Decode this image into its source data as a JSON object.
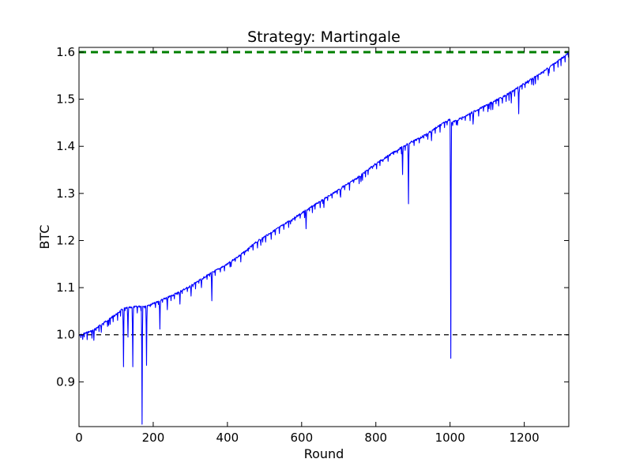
{
  "chart_data": {
    "type": "line",
    "title": "Strategy: Martingale",
    "xlabel": "Round",
    "ylabel": "BTC",
    "xlim": [
      0,
      1320
    ],
    "ylim": [
      0.805,
      1.61
    ],
    "x_ticks": [
      0,
      200,
      400,
      600,
      800,
      1000,
      1200
    ],
    "x_tick_labels": [
      "0",
      "200",
      "400",
      "600",
      "800",
      "1000",
      "1200"
    ],
    "y_ticks": [
      0.9,
      1.0,
      1.1,
      1.2,
      1.3,
      1.4,
      1.5,
      1.6
    ],
    "y_tick_labels": [
      "0.9",
      "1.0",
      "1.1",
      "1.2",
      "1.3",
      "1.4",
      "1.5",
      "1.6"
    ],
    "grid": false,
    "reference_lines": [
      {
        "y": 1.6,
        "color": "#007f00",
        "style": "dashed",
        "width": "thick"
      },
      {
        "y": 1.0,
        "color": "#000000",
        "style": "dashed",
        "width": "thin"
      }
    ],
    "series": [
      {
        "color": "#0000ff",
        "trend": [
          [
            0,
            1.0
          ],
          [
            40,
            1.012
          ],
          [
            80,
            1.035
          ],
          [
            100,
            1.045
          ],
          [
            120,
            1.058
          ],
          [
            160,
            1.062
          ],
          [
            180,
            1.063
          ],
          [
            200,
            1.068
          ],
          [
            250,
            1.085
          ],
          [
            300,
            1.105
          ],
          [
            350,
            1.13
          ],
          [
            400,
            1.152
          ],
          [
            450,
            1.18
          ],
          [
            480,
            1.2
          ],
          [
            550,
            1.235
          ],
          [
            600,
            1.26
          ],
          [
            650,
            1.285
          ],
          [
            700,
            1.31
          ],
          [
            750,
            1.335
          ],
          [
            800,
            1.365
          ],
          [
            850,
            1.39
          ],
          [
            880,
            1.405
          ],
          [
            920,
            1.42
          ],
          [
            1000,
            1.46
          ],
          [
            1005,
            1.452
          ],
          [
            1050,
            1.47
          ],
          [
            1100,
            1.49
          ],
          [
            1150,
            1.51
          ],
          [
            1200,
            1.535
          ],
          [
            1250,
            1.56
          ],
          [
            1320,
            1.6
          ]
        ],
        "drawdowns": [
          [
            10,
            0.99
          ],
          [
            40,
            0.988
          ],
          [
            60,
            1.005
          ],
          [
            80,
            1.02
          ],
          [
            120,
            0.932
          ],
          [
            132,
            0.995
          ],
          [
            145,
            0.932
          ],
          [
            170,
            0.81
          ],
          [
            182,
            0.935
          ],
          [
            218,
            1.012
          ],
          [
            238,
            1.053
          ],
          [
            272,
            1.065
          ],
          [
            302,
            1.082
          ],
          [
            330,
            1.1
          ],
          [
            358,
            1.072
          ],
          [
            410,
            1.145
          ],
          [
            490,
            1.19
          ],
          [
            570,
            1.235
          ],
          [
            612,
            1.225
          ],
          [
            660,
            1.27
          ],
          [
            705,
            1.292
          ],
          [
            760,
            1.325
          ],
          [
            872,
            1.34
          ],
          [
            888,
            1.278
          ],
          [
            940,
            1.415
          ],
          [
            950,
            1.412
          ],
          [
            1002,
            0.95
          ],
          [
            1020,
            1.445
          ],
          [
            1062,
            1.447
          ],
          [
            1105,
            1.48
          ],
          [
            1115,
            1.478
          ],
          [
            1165,
            1.492
          ],
          [
            1185,
            1.469
          ],
          [
            1225,
            1.53
          ],
          [
            1265,
            1.55
          ]
        ]
      }
    ]
  }
}
